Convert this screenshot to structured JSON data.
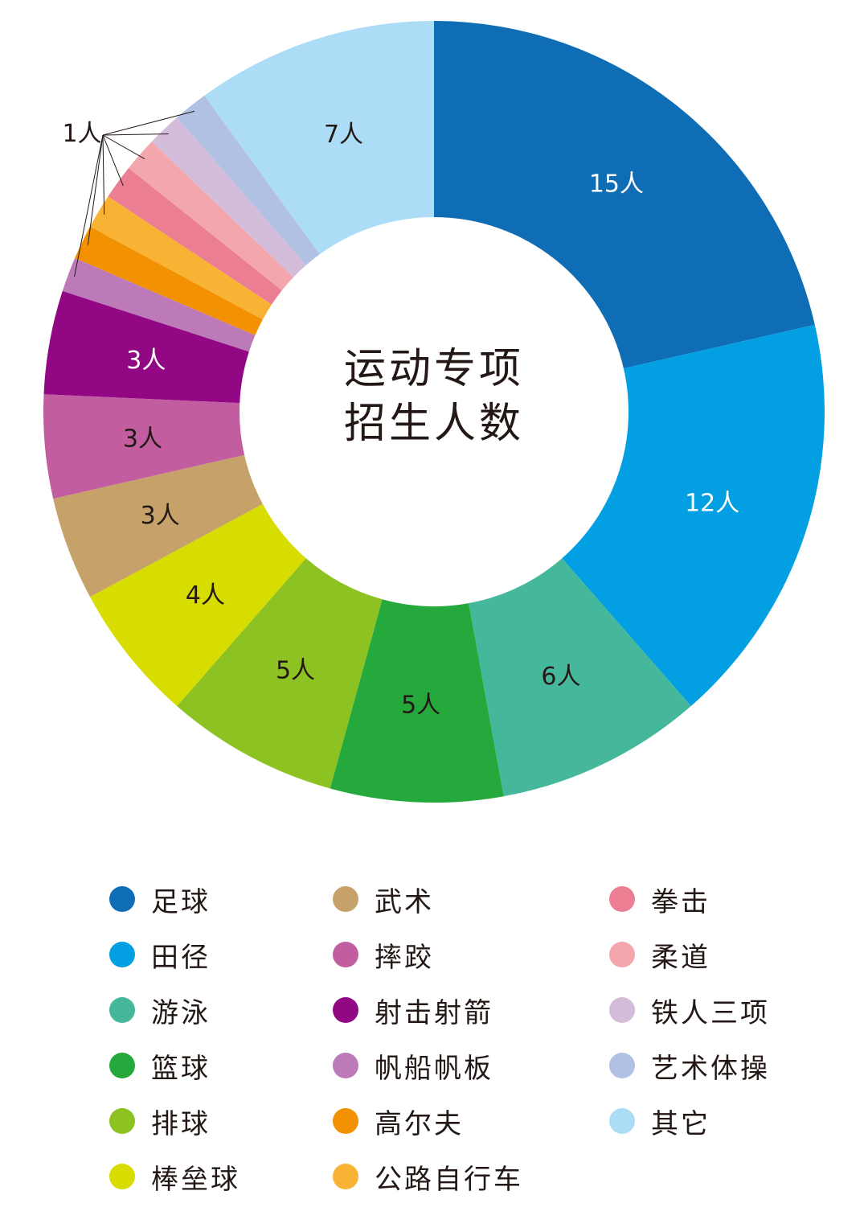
{
  "chart_data": {
    "type": "pie",
    "donut": true,
    "center_title": [
      "运动专项",
      "招生人数"
    ],
    "slices": [
      {
        "label": "足球",
        "value": 15,
        "data_label": "15人",
        "color": "#0F6DB6"
      },
      {
        "label": "田径",
        "value": 12,
        "data_label": "12人",
        "color": "#02A0E3"
      },
      {
        "label": "游泳",
        "value": 6,
        "data_label": "6人",
        "color": "#45B89C"
      },
      {
        "label": "篮球",
        "value": 5,
        "data_label": "5人",
        "color": "#25A93C"
      },
      {
        "label": "排球",
        "value": 5,
        "data_label": "5人",
        "color": "#8CC222"
      },
      {
        "label": "棒垒球",
        "value": 4,
        "data_label": "4人",
        "color": "#D7DC01"
      },
      {
        "label": "武术",
        "value": 3,
        "data_label": "3人",
        "color": "#C6A26A"
      },
      {
        "label": "摔跤",
        "value": 3,
        "data_label": "3人",
        "color": "#C25E9F"
      },
      {
        "label": "射击射箭",
        "value": 3,
        "data_label": "3人",
        "color": "#920783"
      },
      {
        "label": "帆船帆板",
        "value": 1,
        "data_label": "",
        "color": "#BC7BB8"
      },
      {
        "label": "高尔夫",
        "value": 1,
        "data_label": "",
        "color": "#F29203"
      },
      {
        "label": "公路自行车",
        "value": 1,
        "data_label": "",
        "color": "#F8B334"
      },
      {
        "label": "拳击",
        "value": 1,
        "data_label": "",
        "color": "#EC7E93"
      },
      {
        "label": "柔道",
        "value": 1,
        "data_label": "",
        "color": "#F3A7AC"
      },
      {
        "label": "铁人三项",
        "value": 1,
        "data_label": "",
        "color": "#D4BCDB"
      },
      {
        "label": "艺术体操",
        "value": 1,
        "data_label": "",
        "color": "#B1C1E3"
      },
      {
        "label": "其它",
        "value": 7,
        "data_label": "7人",
        "color": "#ADDDF6"
      }
    ],
    "callout_label": "1人",
    "legend_placement": "bottom",
    "legend_columns": [
      [
        "足球",
        "田径",
        "游泳",
        "篮球",
        "排球",
        "棒垒球"
      ],
      [
        "武术",
        "摔跤",
        "射击射箭",
        "帆船帆板",
        "高尔夫",
        "公路自行车"
      ],
      [
        "拳击",
        "柔道",
        "铁人三项",
        "艺术体操",
        "其它"
      ]
    ]
  }
}
